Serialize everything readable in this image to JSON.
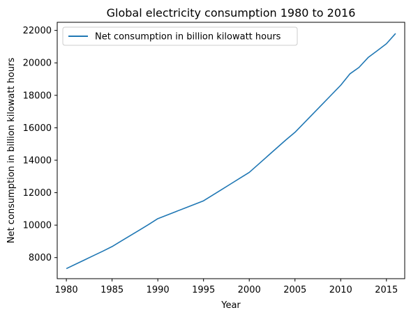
{
  "chart_data": {
    "type": "line",
    "title": "Global electricity consumption 1980 to 2016",
    "xlabel": "Year",
    "ylabel": "Net consumption in billion kilowatt hours",
    "x_ticks": [
      1980,
      1985,
      1990,
      1995,
      2000,
      2005,
      2010,
      2015
    ],
    "y_ticks": [
      8000,
      10000,
      12000,
      14000,
      16000,
      18000,
      20000,
      22000
    ],
    "xlim": [
      1979,
      2017
    ],
    "ylim": [
      6700,
      22500
    ],
    "grid": false,
    "legend_position": "top-left",
    "series": [
      {
        "name": "Net consumption in billion kilowatt hours",
        "color": "#1f77b4",
        "x": [
          1980,
          1981,
          1982,
          1983,
          1984,
          1985,
          1986,
          1987,
          1988,
          1989,
          1990,
          1991,
          1992,
          1993,
          1994,
          1995,
          1996,
          1997,
          1998,
          1999,
          2000,
          2001,
          2002,
          2003,
          2004,
          2005,
          2006,
          2007,
          2008,
          2009,
          2010,
          2011,
          2012,
          2013,
          2014,
          2015,
          2016
        ],
        "y": [
          7320,
          7590,
          7860,
          8130,
          8400,
          8680,
          9020,
          9360,
          9700,
          10040,
          10400,
          10620,
          10840,
          11060,
          11280,
          11500,
          11850,
          12200,
          12550,
          12900,
          13250,
          13750,
          14250,
          14750,
          15250,
          15720,
          16300,
          16880,
          17460,
          18040,
          18620,
          19320,
          19720,
          20330,
          20750,
          21180,
          21810
        ]
      }
    ]
  }
}
